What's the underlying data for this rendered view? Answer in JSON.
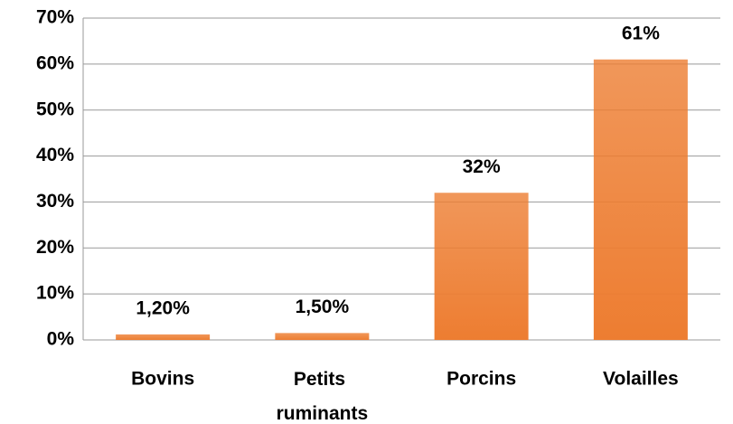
{
  "chart_data": {
    "type": "bar",
    "categories": [
      "Bovins",
      "Petits ruminants",
      "Porcins",
      "Volailles"
    ],
    "values": [
      1.2,
      1.5,
      32,
      61
    ],
    "value_labels": [
      "1,20%",
      "1,50%",
      "32%",
      "61%"
    ],
    "color": "#ed7d31",
    "ylim": [
      0,
      70
    ],
    "yticks": [
      {
        "value": 0,
        "label": "0%"
      },
      {
        "value": 10,
        "label": "10%"
      },
      {
        "value": 20,
        "label": "20%"
      },
      {
        "value": 30,
        "label": "30%"
      },
      {
        "value": 40,
        "label": "40%"
      },
      {
        "value": 50,
        "label": "50%"
      },
      {
        "value": 60,
        "label": "60%"
      },
      {
        "value": 70,
        "label": "70%"
      }
    ],
    "grid": true
  }
}
